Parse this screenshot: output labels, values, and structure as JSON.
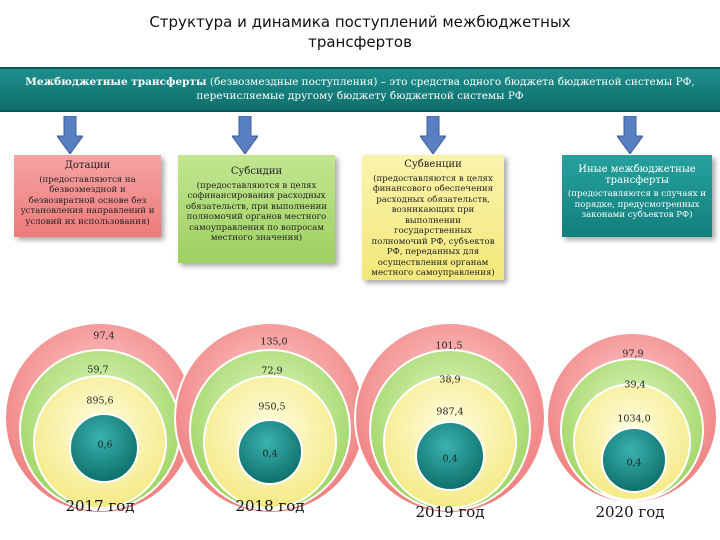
{
  "title": {
    "line1": "Структура и динамика поступлений межбюджетных",
    "line2": "трансфертов"
  },
  "definition": {
    "term": "Межбюджетные трансферты",
    "parenthetical": " (безвозмездные поступления)",
    "text_line1": " – это средства одного бюджета бюджетной системы РФ,",
    "text_line2": "перечисляемые другому бюджету бюджетной системы РФ"
  },
  "categories": [
    {
      "title": "Дотации",
      "desc": "(предоставляются на безвозмездной и безвозвратной основе без установления направлений и условий их использования)",
      "color": "#f08080"
    },
    {
      "title": "Субсидии",
      "desc": "(предоставляются в целях софинансирования расходных обязательств, при выполнении полномочий органов местного самоуправления по вопросам местного значения)",
      "color": "#a5d86a"
    },
    {
      "title": "Субвенции",
      "desc": "(предоставляются в целях финансового обеспечения расходных обязательств, возникающих при выполнении государственных полномочий РФ, субъектов РФ, переданных для осуществления органам местного самоуправления)",
      "color": "#f6ee8c"
    },
    {
      "title": "Иные межбюджетные трансферты",
      "desc": "(предоставляются в случаях и порядке, предусмотренных законами субъектов РФ)",
      "color": "#1d8f8c"
    }
  ],
  "years": [
    {
      "label": "2017 год",
      "dotacii": "97,4",
      "subsidii": "59,7",
      "subvencii": "895,6",
      "inye": "0,6"
    },
    {
      "label": "2018 год",
      "dotacii": "135,0",
      "subsidii": "72,9",
      "subvencii": "950,5",
      "inye": "0,4"
    },
    {
      "label": "2019 год",
      "dotacii": "101,5",
      "subsidii": "38,9",
      "subvencii": "987,4",
      "inye": "0,4"
    },
    {
      "label": "2020 год",
      "dotacii": "97,9",
      "subsidii": "39,4",
      "subvencii": "1034,0",
      "inye": "0,4"
    }
  ],
  "colors": {
    "ring_red": "#f28c8c",
    "ring_green": "#b4e07a",
    "ring_yellow": "#f7ef95",
    "ring_teal": "#14807d",
    "banner": "#1d8f8c",
    "arrow": "#5a7fc0"
  }
}
